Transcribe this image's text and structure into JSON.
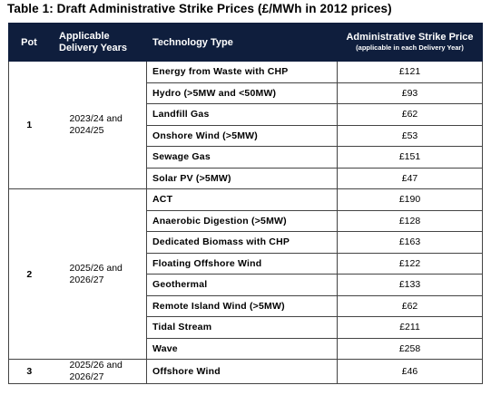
{
  "caption": "Table 1: Draft Administrative Strike Prices (£/MWh in 2012 prices)",
  "headers": {
    "pot": "Pot",
    "years": "Applicable Delivery Years",
    "technology": "Technology Type",
    "price": "Administrative Strike Price",
    "price_note": "(applicable in each Delivery Year)"
  },
  "pots": [
    {
      "pot": "1",
      "years": "2023/24 and 2024/25",
      "rows": [
        {
          "technology": "Energy from Waste with CHP",
          "price": "£121"
        },
        {
          "technology": "Hydro (>5MW and <50MW)",
          "price": "£93"
        },
        {
          "technology": "Landfill Gas",
          "price": "£62"
        },
        {
          "technology": "Onshore Wind (>5MW)",
          "price": "£53"
        },
        {
          "technology": "Sewage Gas",
          "price": "£151"
        },
        {
          "technology": "Solar PV (>5MW)",
          "price": "£47"
        }
      ]
    },
    {
      "pot": "2",
      "years": "2025/26 and 2026/27",
      "rows": [
        {
          "technology": "ACT",
          "price": "£190"
        },
        {
          "technology": "Anaerobic Digestion (>5MW)",
          "price": "£128"
        },
        {
          "technology": "Dedicated Biomass with CHP",
          "price": "£163"
        },
        {
          "technology": "Floating Offshore Wind",
          "price": "£122"
        },
        {
          "technology": "Geothermal",
          "price": "£133"
        },
        {
          "technology": "Remote Island Wind (>5MW)",
          "price": "£62"
        },
        {
          "technology": "Tidal Stream",
          "price": "£211"
        },
        {
          "technology": "Wave",
          "price": "£258"
        }
      ]
    },
    {
      "pot": "3",
      "years": "2025/26 and 2026/27",
      "rows": [
        {
          "technology": "Offshore Wind",
          "price": "£46"
        }
      ]
    }
  ]
}
